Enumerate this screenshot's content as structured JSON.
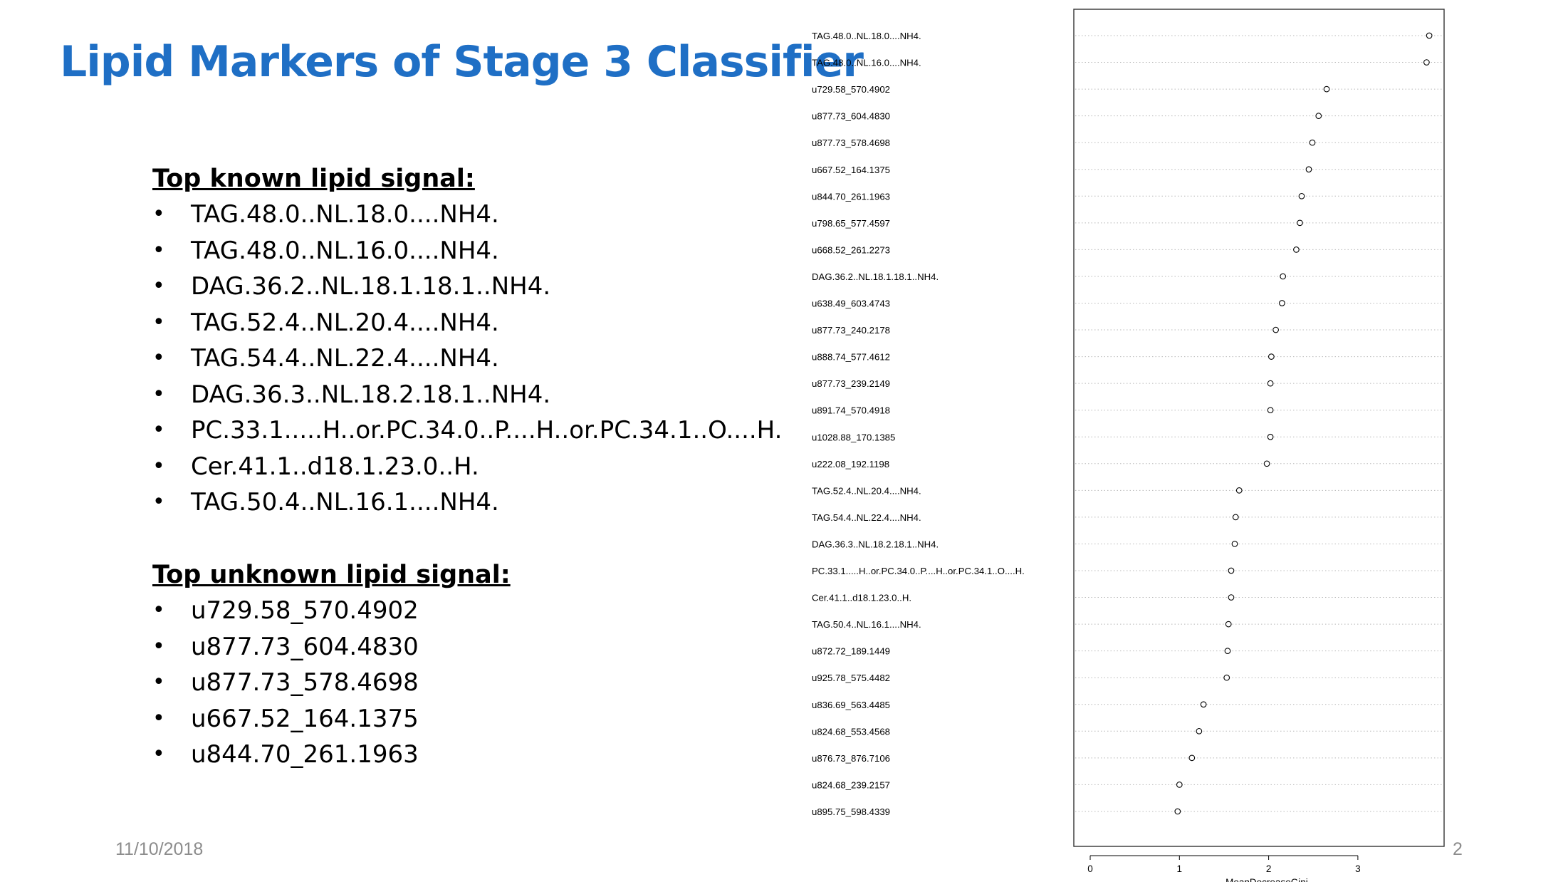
{
  "slide": {
    "title": "Lipid Markers of Stage 3 Classifier",
    "known_heading": "Top known lipid signal:",
    "known_items": [
      "TAG.48.0..NL.18.0....NH4.",
      "TAG.48.0..NL.16.0....NH4.",
      "DAG.36.2..NL.18.1.18.1..NH4.",
      "TAG.52.4..NL.20.4....NH4.",
      "TAG.54.4..NL.22.4....NH4.",
      "DAG.36.3..NL.18.2.18.1..NH4.",
      "PC.33.1.....H..or.PC.34.0..P....H..or.PC.34.1..O....H.",
      "Cer.41.1..d18.1.23.0..H.",
      "TAG.50.4..NL.16.1....NH4."
    ],
    "unknown_heading": "Top unknown lipid signal:",
    "unknown_items": [
      "u729.58_570.4902",
      "u877.73_604.4830",
      "u877.73_578.4698",
      "u667.52_164.1375",
      "u844.70_261.1963"
    ],
    "bullet_char": "•",
    "date": "11/10/2018",
    "page_number": "2"
  },
  "colors": {
    "title": "#1f6fc5",
    "footer": "#8c8c8c"
  },
  "chart_data": {
    "type": "scatter",
    "style": "dotchart",
    "xlabel": "MeanDecreaseGini",
    "ylabel": "",
    "xlim": [
      -0.15,
      3.95
    ],
    "xticks": [
      "0",
      "1",
      "2",
      "3"
    ],
    "grid": "dotted horizontal",
    "categories": [
      "TAG.48.0..NL.18.0....NH4.",
      "TAG.48.0..NL.16.0....NH4.",
      "u729.58_570.4902",
      "u877.73_604.4830",
      "u877.73_578.4698",
      "u667.52_164.1375",
      "u844.70_261.1963",
      "u798.65_577.4597",
      "u668.52_261.2273",
      "DAG.36.2..NL.18.1.18.1..NH4.",
      "u638.49_603.4743",
      "u877.73_240.2178",
      "u888.74_577.4612",
      "u877.73_239.2149",
      "u891.74_570.4918",
      "u1028.88_170.1385",
      "u222.08_192.1198",
      "TAG.52.4..NL.20.4....NH4.",
      "TAG.54.4..NL.22.4....NH4.",
      "DAG.36.3..NL.18.2.18.1..NH4.",
      "PC.33.1.....H..or.PC.34.0..P....H..or.PC.34.1..O....H.",
      "Cer.41.1..d18.1.23.0..H.",
      "TAG.50.4..NL.16.1....NH4.",
      "u872.72_189.1449",
      "u925.78_575.4482",
      "u836.69_563.4485",
      "u824.68_553.4568",
      "u876.73_876.7106",
      "u824.68_239.2157",
      "u895.75_598.4339"
    ],
    "values": [
      3.8,
      3.77,
      2.65,
      2.56,
      2.49,
      2.45,
      2.37,
      2.35,
      2.31,
      2.16,
      2.15,
      2.08,
      2.03,
      2.02,
      2.02,
      2.02,
      1.98,
      1.67,
      1.63,
      1.62,
      1.58,
      1.58,
      1.55,
      1.54,
      1.53,
      1.27,
      1.22,
      1.14,
      1.0,
      0.98
    ]
  }
}
